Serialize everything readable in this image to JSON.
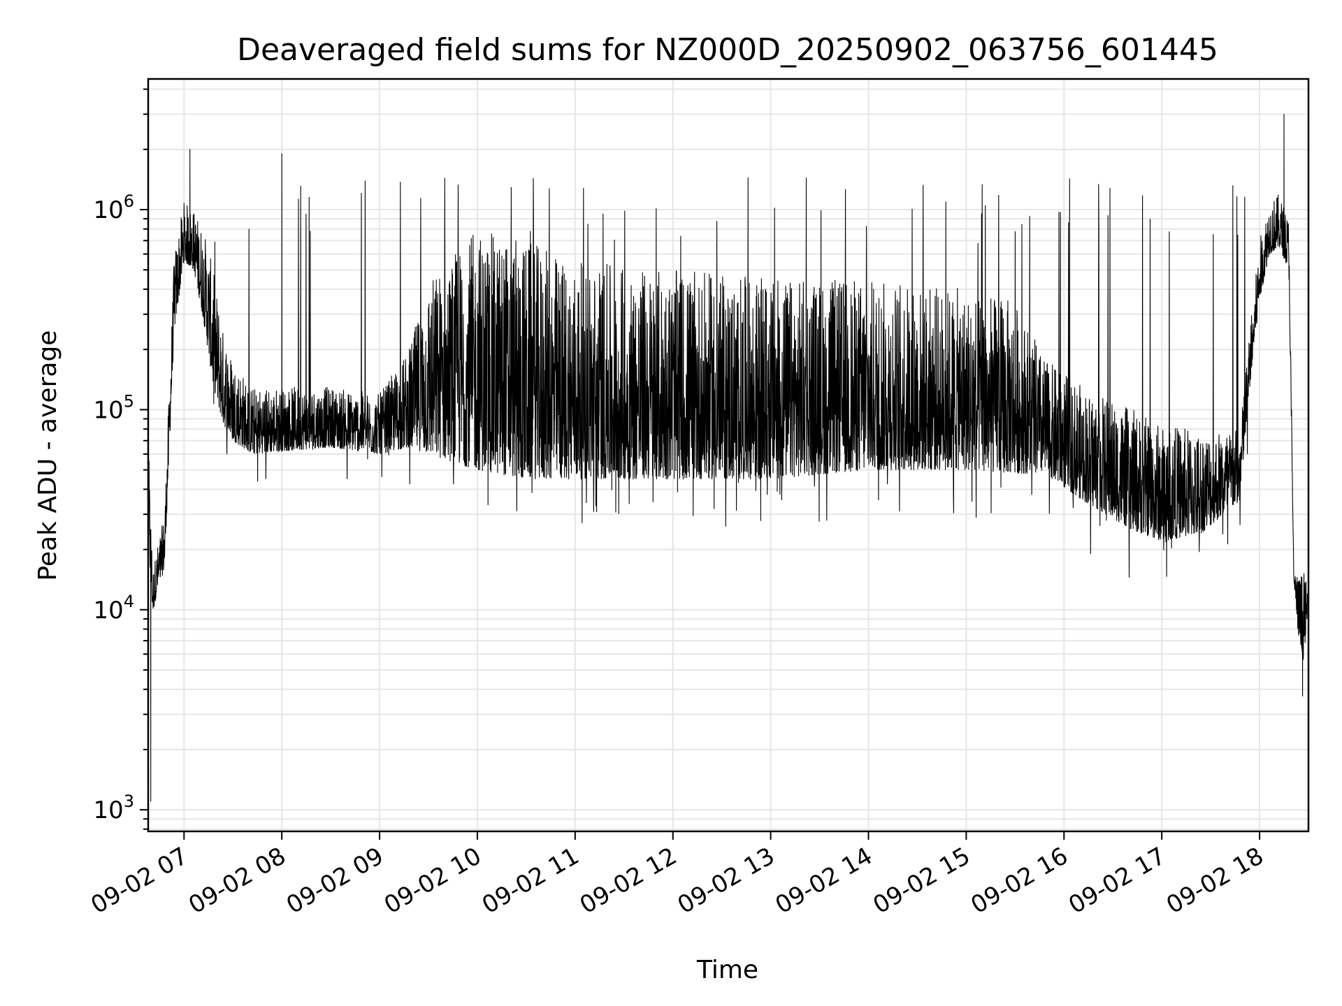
{
  "chart_data": {
    "type": "line",
    "title": "Deaveraged field sums for NZ000D_20250902_063756_601445",
    "xlabel": "Time",
    "ylabel": "Peak ADU - average",
    "yscale": "log",
    "xlim": [
      "09-02 06:38",
      "09-02 18:30"
    ],
    "ylim": [
      780,
      4500000
    ],
    "grid": true,
    "line_color": "#000000",
    "x_ticks": [
      {
        "label": "09-02 07",
        "hour": 7
      },
      {
        "label": "09-02 08",
        "hour": 8
      },
      {
        "label": "09-02 09",
        "hour": 9
      },
      {
        "label": "09-02 10",
        "hour": 10
      },
      {
        "label": "09-02 11",
        "hour": 11
      },
      {
        "label": "09-02 12",
        "hour": 12
      },
      {
        "label": "09-02 13",
        "hour": 13
      },
      {
        "label": "09-02 14",
        "hour": 14
      },
      {
        "label": "09-02 15",
        "hour": 15
      },
      {
        "label": "09-02 16",
        "hour": 16
      },
      {
        "label": "09-02 17",
        "hour": 17
      },
      {
        "label": "09-02 18",
        "hour": 18
      }
    ],
    "y_ticks": [
      {
        "base": "10",
        "exp": "3",
        "value": 1000
      },
      {
        "base": "10",
        "exp": "4",
        "value": 10000
      },
      {
        "base": "10",
        "exp": "5",
        "value": 100000
      },
      {
        "base": "10",
        "exp": "6",
        "value": 1000000
      }
    ],
    "series": [
      {
        "envelope_hours": [
          6.64,
          6.68,
          6.72,
          6.8,
          6.9,
          7.0,
          7.1,
          7.2,
          7.3,
          7.4,
          7.5,
          7.7,
          8.0,
          8.5,
          9.0,
          9.3,
          9.5,
          10.0,
          10.5,
          11.0,
          12.0,
          13.0,
          14.0,
          15.0,
          15.5,
          15.8,
          16.2,
          16.7,
          17.0,
          17.4,
          17.8,
          17.9,
          18.0,
          18.1,
          18.2,
          18.3,
          18.35,
          18.4,
          18.45,
          18.5
        ],
        "envelope_low": [
          20000,
          9500,
          12000,
          16000,
          250000,
          550000,
          500000,
          280000,
          130000,
          85000,
          70000,
          60000,
          62000,
          65000,
          60000,
          65000,
          60000,
          50000,
          45000,
          45000,
          45000,
          45000,
          50000,
          50000,
          48000,
          48000,
          35000,
          25000,
          22000,
          24000,
          35000,
          130000,
          350000,
          600000,
          650000,
          500000,
          14000,
          7000,
          5500,
          11000
        ],
        "envelope_high": [
          60000,
          16000,
          20000,
          30000,
          600000,
          1100000,
          1000000,
          800000,
          500000,
          250000,
          180000,
          130000,
          130000,
          130000,
          120000,
          200000,
          450000,
          800000,
          700000,
          550000,
          500000,
          450000,
          450000,
          400000,
          350000,
          180000,
          130000,
          100000,
          85000,
          80000,
          80000,
          250000,
          700000,
          1100000,
          1200000,
          900000,
          16000,
          15000,
          16000,
          12000
        ],
        "spike_top": 1500000,
        "spike_bottom": 40000,
        "extremes": [
          {
            "hour": 6.66,
            "value": 1100
          },
          {
            "hour": 7.06,
            "value": 2000000
          },
          {
            "hour": 8.0,
            "value": 1900000
          },
          {
            "hour": 18.25,
            "value": 3000000
          },
          {
            "hour": 18.44,
            "value": 3700
          }
        ]
      }
    ]
  }
}
